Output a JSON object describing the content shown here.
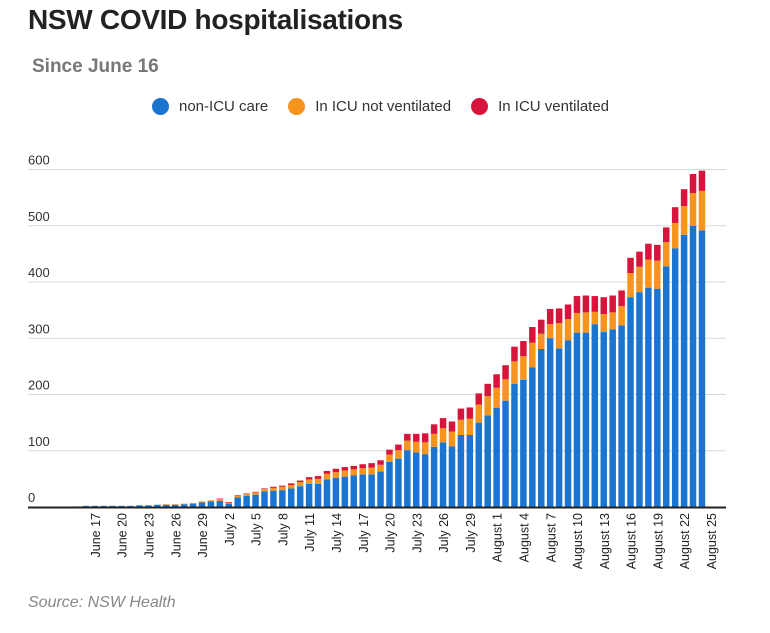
{
  "header": {
    "title": "NSW COVID hospitalisations",
    "subtitle": "Since June 16"
  },
  "source": "Source: NSW Health",
  "chart_data": {
    "type": "bar",
    "stacked": true,
    "title": "NSW COVID hospitalisations",
    "subtitle": "Since June 16",
    "xlabel": "",
    "ylabel": "",
    "ylim": [
      0,
      650
    ],
    "y_ticks": [
      0,
      100,
      200,
      300,
      400,
      500,
      600
    ],
    "grid": "horizontal",
    "legend_position": "top",
    "categories": [
      "June 16",
      "June 17",
      "June 18",
      "June 19",
      "June 20",
      "June 21",
      "June 22",
      "June 23",
      "June 24",
      "June 25",
      "June 26",
      "June 27",
      "June 28",
      "June 29",
      "June 30",
      "July 1",
      "July 2",
      "July 3",
      "July 4",
      "July 5",
      "July 6",
      "July 7",
      "July 8",
      "July 9",
      "July 10",
      "July 11",
      "July 12",
      "July 13",
      "July 14",
      "July 15",
      "July 16",
      "July 17",
      "July 18",
      "July 19",
      "July 20",
      "July 21",
      "July 22",
      "July 23",
      "July 24",
      "July 25",
      "July 26",
      "July 27",
      "July 28",
      "July 29",
      "July 30",
      "July 31",
      "August 1",
      "August 2",
      "August 3",
      "August 4",
      "August 5",
      "August 6",
      "August 7",
      "August 8",
      "August 9",
      "August 10",
      "August 11",
      "August 12",
      "August 13",
      "August 14",
      "August 15",
      "August 16",
      "August 17",
      "August 18",
      "August 19",
      "August 20",
      "August 21",
      "August 22",
      "August 23",
      "August 24",
      "August 25"
    ],
    "x_tick_labels": [
      "June 17",
      "June 20",
      "June 23",
      "June 26",
      "June 29",
      "July 2",
      "July 5",
      "July 8",
      "July 11",
      "July 14",
      "July 17",
      "July 20",
      "July 23",
      "July 26",
      "July 29",
      "August 1",
      "August 4",
      "August 7",
      "August 10",
      "August 13",
      "August 16",
      "August 19",
      "August 22",
      "August 25"
    ],
    "series": [
      {
        "name": "non-ICU care",
        "color": "#1b75d0",
        "values": [
          1,
          2,
          2,
          2,
          2,
          2,
          2,
          3,
          3,
          4,
          4,
          4,
          5,
          6,
          8,
          10,
          11,
          6,
          17,
          20,
          22,
          28,
          29,
          30,
          33,
          37,
          41,
          41,
          49,
          52,
          54,
          56,
          58,
          58,
          63,
          80,
          86,
          101,
          97,
          94,
          107,
          115,
          108,
          128,
          128,
          150,
          163,
          176,
          189,
          219,
          226,
          248,
          281,
          300,
          282,
          296,
          310,
          310,
          325,
          311,
          316,
          323,
          373,
          382,
          390,
          388,
          428,
          460,
          484,
          500,
          492
        ]
      },
      {
        "name": "In ICU not ventilated",
        "color": "#f7941d",
        "values": [
          0,
          0,
          0,
          0,
          0,
          0,
          0,
          0,
          0,
          0,
          1,
          1,
          1,
          1,
          2,
          2,
          3,
          2,
          3,
          3,
          4,
          4,
          5,
          6,
          6,
          7,
          8,
          9,
          10,
          10,
          11,
          11,
          11,
          12,
          12,
          13,
          15,
          17,
          19,
          21,
          23,
          25,
          26,
          27,
          29,
          32,
          34,
          36,
          38,
          40,
          42,
          44,
          27,
          25,
          45,
          38,
          35,
          36,
          22,
          32,
          30,
          34,
          43,
          45,
          50,
          50,
          43,
          45,
          51,
          58,
          70
        ]
      },
      {
        "name": "In ICU ventilated",
        "color": "#d7143c",
        "values": [
          0,
          0,
          0,
          0,
          0,
          0,
          0,
          0,
          0,
          0,
          0,
          0,
          0,
          0,
          0,
          0,
          1,
          1,
          1,
          1,
          1,
          1,
          2,
          2,
          3,
          3,
          4,
          5,
          5,
          6,
          6,
          6,
          7,
          8,
          8,
          9,
          10,
          12,
          14,
          16,
          17,
          18,
          18,
          20,
          20,
          20,
          22,
          24,
          25,
          26,
          27,
          28,
          25,
          27,
          26,
          26,
          30,
          30,
          28,
          30,
          30,
          28,
          27,
          27,
          28,
          28,
          26,
          28,
          30,
          34,
          36
        ]
      }
    ]
  }
}
